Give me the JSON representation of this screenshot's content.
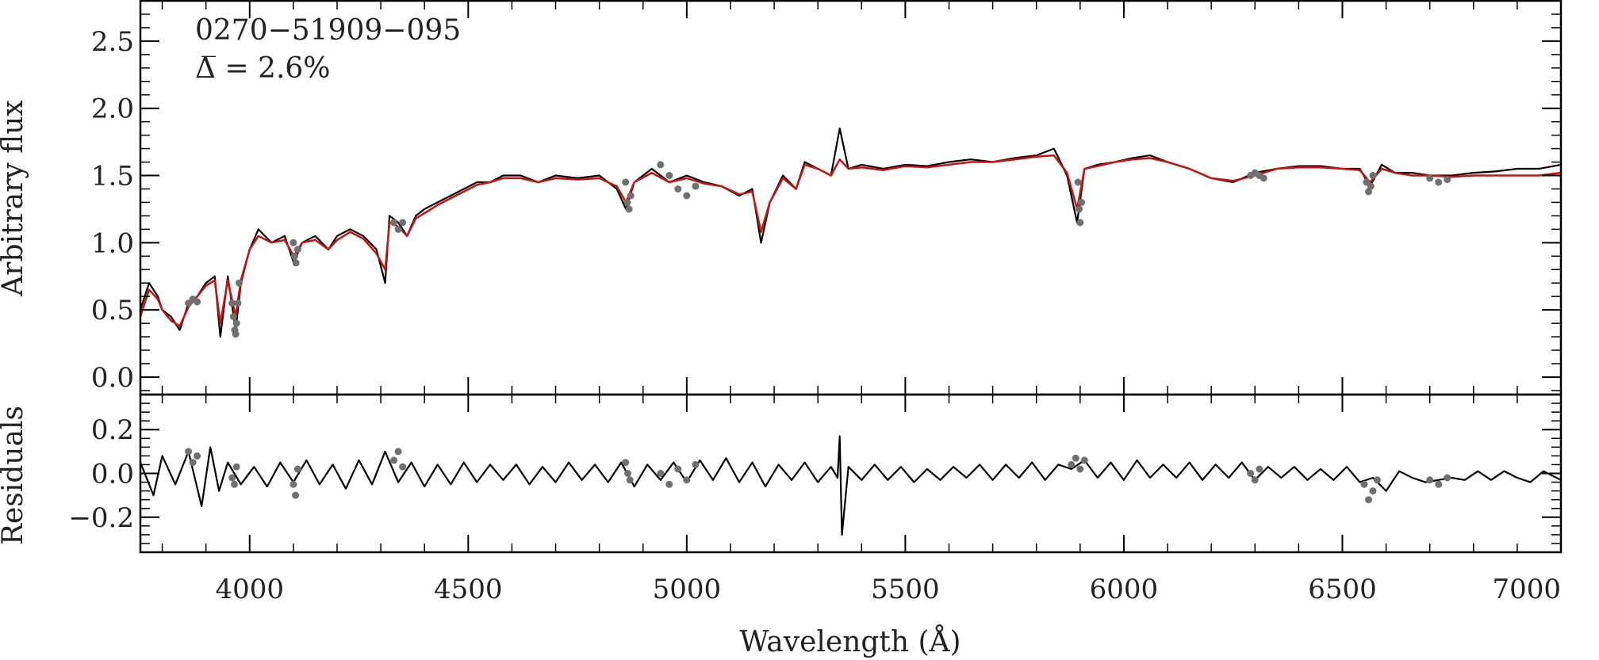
{
  "chart_data": [
    {
      "type": "line",
      "panel": "top",
      "annotation": {
        "object_id": "0270−51909−095",
        "delta_line": "Δ̅ = 2.6%"
      },
      "xlabel": "Wavelength (Å)",
      "ylabel": "Arbitrary flux",
      "xlim": [
        3750,
        7000
      ],
      "ylim": [
        -0.13,
        2.8
      ],
      "x_ticks": [
        "4000",
        "4500",
        "5000",
        "5500",
        "6000",
        "6500",
        "7000"
      ],
      "y_ticks": [
        "0.0",
        "0.5",
        "1.0",
        "1.5",
        "2.0",
        "2.5"
      ],
      "grid": false,
      "series": [
        {
          "role": "observed spectrum",
          "color": "#000000",
          "x": [
            3750,
            3770,
            3790,
            3800,
            3820,
            3840,
            3860,
            3880,
            3900,
            3920,
            3933,
            3950,
            3968,
            3980,
            4000,
            4020,
            4050,
            4080,
            4101,
            4120,
            4150,
            4180,
            4200,
            4230,
            4260,
            4290,
            4310,
            4320,
            4340,
            4360,
            4380,
            4400,
            4430,
            4460,
            4490,
            4520,
            4550,
            4580,
            4620,
            4660,
            4700,
            4750,
            4800,
            4840,
            4861,
            4880,
            4920,
            4960,
            5000,
            5040,
            5080,
            5120,
            5150,
            5170,
            5190,
            5220,
            5250,
            5270,
            5300,
            5330,
            5350,
            5370,
            5400,
            5450,
            5500,
            5550,
            5600,
            5650,
            5700,
            5750,
            5800,
            5840,
            5870,
            5893,
            5910,
            5940,
            5980,
            6020,
            6060,
            6100,
            6150,
            6200,
            6250,
            6300,
            6350,
            6400,
            6450,
            6500,
            6540,
            6563,
            6590,
            6620,
            6660,
            6700,
            6750,
            6800,
            6850,
            6900,
            6950,
            7000
          ],
          "y": [
            0.5,
            0.7,
            0.6,
            0.5,
            0.45,
            0.35,
            0.55,
            0.6,
            0.7,
            0.75,
            0.3,
            0.75,
            0.35,
            0.7,
            0.95,
            1.1,
            1.0,
            1.05,
            0.85,
            1.0,
            1.05,
            0.95,
            1.05,
            1.1,
            1.05,
            0.95,
            0.7,
            1.2,
            1.15,
            1.05,
            1.2,
            1.25,
            1.3,
            1.35,
            1.4,
            1.45,
            1.45,
            1.5,
            1.5,
            1.45,
            1.5,
            1.48,
            1.5,
            1.4,
            1.25,
            1.45,
            1.55,
            1.45,
            1.5,
            1.45,
            1.42,
            1.35,
            1.4,
            1.0,
            1.3,
            1.5,
            1.4,
            1.6,
            1.55,
            1.5,
            1.85,
            1.55,
            1.58,
            1.55,
            1.58,
            1.57,
            1.6,
            1.62,
            1.6,
            1.63,
            1.65,
            1.7,
            1.5,
            1.15,
            1.55,
            1.58,
            1.6,
            1.63,
            1.65,
            1.6,
            1.55,
            1.48,
            1.45,
            1.52,
            1.55,
            1.57,
            1.57,
            1.55,
            1.55,
            1.42,
            1.58,
            1.52,
            1.52,
            1.5,
            1.5,
            1.52,
            1.53,
            1.55,
            1.55,
            1.58
          ]
        },
        {
          "role": "model fit",
          "color": "#cc1111",
          "x": [
            3750,
            3770,
            3790,
            3800,
            3820,
            3840,
            3860,
            3880,
            3900,
            3920,
            3933,
            3950,
            3968,
            3980,
            4000,
            4020,
            4050,
            4080,
            4101,
            4120,
            4150,
            4180,
            4200,
            4230,
            4260,
            4290,
            4310,
            4320,
            4340,
            4360,
            4380,
            4400,
            4430,
            4460,
            4490,
            4520,
            4550,
            4580,
            4620,
            4660,
            4700,
            4750,
            4800,
            4840,
            4861,
            4880,
            4920,
            4960,
            5000,
            5040,
            5080,
            5120,
            5150,
            5170,
            5190,
            5220,
            5250,
            5270,
            5300,
            5330,
            5350,
            5370,
            5400,
            5450,
            5500,
            5550,
            5600,
            5650,
            5700,
            5750,
            5800,
            5840,
            5870,
            5893,
            5910,
            5940,
            5980,
            6020,
            6060,
            6100,
            6150,
            6200,
            6250,
            6300,
            6350,
            6400,
            6450,
            6500,
            6540,
            6563,
            6590,
            6620,
            6660,
            6700,
            6750,
            6800,
            6850,
            6900,
            6950,
            7000
          ],
          "y": [
            0.45,
            0.65,
            0.58,
            0.5,
            0.42,
            0.38,
            0.52,
            0.6,
            0.68,
            0.72,
            0.4,
            0.72,
            0.45,
            0.72,
            0.95,
            1.05,
            1.0,
            1.02,
            0.9,
            1.0,
            1.02,
            0.95,
            1.02,
            1.08,
            1.03,
            0.92,
            0.8,
            1.15,
            1.12,
            1.05,
            1.18,
            1.22,
            1.28,
            1.33,
            1.38,
            1.43,
            1.45,
            1.48,
            1.48,
            1.45,
            1.48,
            1.47,
            1.48,
            1.42,
            1.3,
            1.45,
            1.52,
            1.45,
            1.48,
            1.44,
            1.42,
            1.36,
            1.38,
            1.08,
            1.3,
            1.48,
            1.4,
            1.58,
            1.55,
            1.5,
            1.62,
            1.55,
            1.56,
            1.54,
            1.57,
            1.56,
            1.58,
            1.6,
            1.6,
            1.62,
            1.64,
            1.65,
            1.52,
            1.25,
            1.55,
            1.57,
            1.6,
            1.62,
            1.63,
            1.6,
            1.55,
            1.48,
            1.46,
            1.5,
            1.55,
            1.56,
            1.56,
            1.55,
            1.54,
            1.45,
            1.55,
            1.52,
            1.5,
            1.5,
            1.49,
            1.5,
            1.5,
            1.5,
            1.5,
            1.52
          ]
        },
        {
          "role": "masked points",
          "color": "#707070",
          "x": [
            3860,
            3870,
            3880,
            3960,
            3963,
            3966,
            3968,
            3970,
            3973,
            3976,
            4100,
            4103,
            4106,
            4110,
            4330,
            4340,
            4350,
            4860,
            4864,
            4868,
            4872,
            4940,
            4960,
            4980,
            5000,
            5020,
            5895,
            5898,
            5900,
            5903,
            6290,
            6300,
            6310,
            6320,
            6555,
            6560,
            6565,
            6570,
            6700,
            6720,
            6740
          ],
          "y": [
            0.55,
            0.58,
            0.56,
            0.55,
            0.45,
            0.35,
            0.32,
            0.4,
            0.55,
            0.7,
            1.0,
            0.9,
            0.85,
            0.95,
            1.15,
            1.1,
            1.15,
            1.45,
            1.3,
            1.25,
            1.35,
            1.58,
            1.5,
            1.4,
            1.35,
            1.42,
            1.45,
            1.25,
            1.15,
            1.3,
            1.5,
            1.52,
            1.5,
            1.48,
            1.45,
            1.38,
            1.42,
            1.5,
            1.48,
            1.45,
            1.47
          ]
        }
      ]
    },
    {
      "type": "line",
      "panel": "bottom",
      "xlabel": "Wavelength (Å)",
      "ylabel": "Residuals",
      "xlim": [
        3750,
        7000
      ],
      "ylim": [
        -0.36,
        0.36
      ],
      "y_ticks": [
        "0.2",
        "0.0",
        "−0.2"
      ],
      "grid": false,
      "series": [
        {
          "role": "residuals",
          "color": "#000000",
          "x": [
            3750,
            3780,
            3800,
            3830,
            3860,
            3890,
            3910,
            3930,
            3950,
            3980,
            4010,
            4040,
            4070,
            4100,
            4130,
            4160,
            4190,
            4220,
            4250,
            4280,
            4310,
            4340,
            4370,
            4400,
            4430,
            4460,
            4490,
            4520,
            4550,
            4580,
            4610,
            4640,
            4670,
            4700,
            4730,
            4760,
            4790,
            4820,
            4850,
            4880,
            4910,
            4940,
            4970,
            5000,
            5030,
            5060,
            5090,
            5120,
            5150,
            5180,
            5210,
            5240,
            5270,
            5300,
            5330,
            5345,
            5350,
            5355,
            5370,
            5400,
            5430,
            5460,
            5490,
            5520,
            5550,
            5580,
            5610,
            5640,
            5670,
            5700,
            5730,
            5760,
            5790,
            5820,
            5850,
            5880,
            5910,
            5940,
            5970,
            6000,
            6030,
            6060,
            6090,
            6120,
            6150,
            6180,
            6210,
            6240,
            6270,
            6300,
            6330,
            6360,
            6390,
            6420,
            6450,
            6480,
            6510,
            6540,
            6570,
            6600,
            6630,
            6660,
            6690,
            6720,
            6750,
            6780,
            6810,
            6840,
            6870,
            6900,
            6930,
            6960,
            7000
          ],
          "y": [
            0.05,
            -0.1,
            0.08,
            -0.05,
            0.1,
            -0.15,
            0.12,
            -0.08,
            0.05,
            -0.05,
            0.03,
            -0.06,
            0.05,
            -0.04,
            0.06,
            -0.05,
            0.04,
            -0.07,
            0.06,
            -0.05,
            0.1,
            -0.04,
            0.05,
            -0.06,
            0.04,
            -0.05,
            0.05,
            -0.04,
            0.04,
            -0.03,
            0.04,
            -0.05,
            0.03,
            -0.04,
            0.05,
            -0.03,
            0.04,
            -0.04,
            0.05,
            -0.06,
            0.04,
            -0.03,
            0.05,
            -0.04,
            0.06,
            -0.03,
            0.07,
            -0.04,
            0.05,
            -0.06,
            0.04,
            -0.03,
            0.05,
            -0.04,
            0.03,
            -0.02,
            0.17,
            -0.28,
            0.03,
            -0.03,
            0.04,
            -0.03,
            0.03,
            -0.04,
            0.02,
            -0.03,
            0.03,
            -0.02,
            0.04,
            -0.03,
            0.04,
            -0.02,
            0.05,
            -0.03,
            0.04,
            0.02,
            0.06,
            -0.02,
            0.05,
            -0.03,
            0.06,
            -0.02,
            0.04,
            -0.02,
            0.05,
            -0.03,
            0.04,
            -0.02,
            0.05,
            -0.03,
            0.03,
            -0.02,
            0.03,
            -0.03,
            0.02,
            -0.03,
            0.03,
            -0.04,
            -0.02,
            -0.08,
            0.01,
            -0.02,
            -0.04,
            -0.03,
            -0.02,
            -0.03,
            0.01,
            -0.03,
            0.01,
            -0.02,
            -0.04,
            0.01,
            -0.03
          ]
        },
        {
          "role": "masked points",
          "color": "#707070",
          "x": [
            3860,
            3870,
            3880,
            3960,
            3965,
            3970,
            4100,
            4105,
            4110,
            4330,
            4340,
            4350,
            4860,
            4865,
            4870,
            4940,
            4960,
            4980,
            5000,
            5020,
            5880,
            5890,
            5900,
            5910,
            6290,
            6300,
            6310,
            6550,
            6560,
            6570,
            6580,
            6700,
            6720,
            6740
          ],
          "y": [
            0.1,
            0.05,
            0.08,
            -0.02,
            -0.05,
            0.03,
            -0.05,
            -0.1,
            0.02,
            0.06,
            0.1,
            0.03,
            0.05,
            0.0,
            -0.03,
            0.0,
            -0.05,
            0.02,
            -0.03,
            0.04,
            0.04,
            0.07,
            0.02,
            0.06,
            0.0,
            -0.03,
            0.02,
            -0.05,
            -0.12,
            -0.08,
            -0.03,
            -0.03,
            -0.05,
            -0.02
          ]
        }
      ]
    }
  ]
}
